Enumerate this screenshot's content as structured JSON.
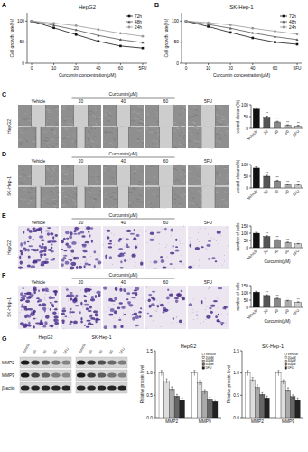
{
  "figure": {
    "panels": [
      "A",
      "B",
      "C",
      "D",
      "E",
      "F",
      "G"
    ],
    "header": "Curcumin(μM)",
    "conditions": [
      "Vehicle",
      "20",
      "40",
      "60",
      "5FU"
    ],
    "cell_lines": [
      "HepG2",
      "SK-Hep-1"
    ],
    "blot_proteins": [
      "MMP2",
      "MMP9",
      "β-actin"
    ]
  },
  "chart_data": [
    {
      "type": "line",
      "title": "HepG2",
      "x_label": "Curcumin concentration(μM)",
      "y_label": "Cell growth rate(%)",
      "categories": [
        "0",
        "10",
        "20",
        "40",
        "60",
        "5FU"
      ],
      "ylim": [
        0,
        120
      ],
      "yticks": [
        0,
        50,
        100
      ],
      "legend": "upper right",
      "series": [
        {
          "name": "72h",
          "color": "#111111",
          "marker": "square",
          "values": [
            100,
            84,
            68,
            52,
            41,
            36
          ]
        },
        {
          "name": "48h",
          "color": "#555555",
          "marker": "triangle",
          "values": [
            100,
            90,
            79,
            66,
            56,
            49
          ]
        },
        {
          "name": "24h",
          "color": "#999999",
          "marker": "circle",
          "values": [
            100,
            95,
            89,
            80,
            71,
            64
          ]
        }
      ]
    },
    {
      "type": "line",
      "title": "SK-Hep-1",
      "x_label": "Curcumin concentration(μM)",
      "y_label": "Cell growth rate(%)",
      "categories": [
        "0",
        "10",
        "20",
        "40",
        "60",
        "5FU"
      ],
      "ylim": [
        0,
        120
      ],
      "yticks": [
        0,
        50,
        100
      ],
      "legend": "upper right",
      "series": [
        {
          "name": "72h",
          "color": "#111111",
          "marker": "square",
          "values": [
            100,
            87,
            73,
            60,
            50,
            45
          ]
        },
        {
          "name": "48h",
          "color": "#555555",
          "marker": "triangle",
          "values": [
            100,
            92,
            83,
            72,
            63,
            56
          ]
        },
        {
          "name": "24h",
          "color": "#999999",
          "marker": "circle",
          "values": [
            100,
            96,
            91,
            83,
            76,
            69
          ]
        }
      ]
    },
    {
      "type": "bar",
      "y_label": "wound closure(%)",
      "categories": [
        "Vehicle",
        "20",
        "40",
        "60",
        "5FU"
      ],
      "values": [
        82,
        48,
        27,
        13,
        11
      ],
      "errors": [
        5,
        4,
        3,
        2,
        2
      ],
      "annotations": [
        null,
        "**",
        "**",
        "**",
        "**"
      ],
      "colors": [
        "#111111",
        "#555555",
        "#888888",
        "#aaaaaa",
        "#cccccc"
      ],
      "ylim": [
        0,
        100
      ],
      "yticks": [
        0,
        50,
        100
      ]
    },
    {
      "type": "bar",
      "y_label": "wound closure(%)",
      "categories": [
        "Vehicle",
        "20",
        "40",
        "60",
        "5FU"
      ],
      "values": [
        85,
        50,
        30,
        14,
        12
      ],
      "errors": [
        5,
        4,
        3,
        2,
        2
      ],
      "annotations": [
        null,
        "**",
        "**",
        "**",
        "**"
      ],
      "colors": [
        "#111111",
        "#555555",
        "#888888",
        "#aaaaaa",
        "#cccccc"
      ],
      "ylim": [
        0,
        100
      ],
      "yticks": [
        0,
        50,
        100
      ]
    },
    {
      "type": "bar",
      "y_label": "number of cells",
      "x_label": "Curcumin(μM)",
      "categories": [
        "Vehicle",
        "20",
        "40",
        "60",
        "5FU"
      ],
      "values": [
        100,
        78,
        52,
        36,
        26
      ],
      "errors": [
        6,
        5,
        4,
        3,
        3
      ],
      "annotations": [
        null,
        "**",
        "**",
        "**",
        "**"
      ],
      "colors": [
        "#111111",
        "#555555",
        "#888888",
        "#aaaaaa",
        "#cccccc"
      ],
      "ylim": [
        0,
        150
      ],
      "yticks": [
        0,
        50,
        100,
        150
      ]
    },
    {
      "type": "bar",
      "y_label": "number of cells",
      "x_label": "Curcumin(μM)",
      "categories": [
        "Vehicle",
        "20",
        "40",
        "60",
        "5FU"
      ],
      "values": [
        105,
        82,
        60,
        45,
        35
      ],
      "errors": [
        6,
        5,
        4,
        4,
        3
      ],
      "annotations": [
        null,
        "**",
        "**",
        "**",
        "**"
      ],
      "colors": [
        "#111111",
        "#555555",
        "#888888",
        "#aaaaaa",
        "#cccccc"
      ],
      "ylim": [
        0,
        150
      ],
      "yticks": [
        0,
        50,
        100,
        150
      ]
    },
    {
      "type": "grouped_bar",
      "title": "HepG2",
      "y_label": "Relative protein level",
      "categories": [
        "MMP2",
        "MMP9"
      ],
      "ylim": [
        0,
        1.5
      ],
      "yticks": [
        {
          "value": 0,
          "label": "0.0"
        },
        0.5,
        {
          "value": 1,
          "label": "1.0"
        },
        1.5
      ],
      "legend": "upper right",
      "series": [
        {
          "name": "Vehicle",
          "color": "#ffffff",
          "values": [
            1.0,
            1.0
          ],
          "errors": [
            0.06,
            0.06
          ]
        },
        {
          "name": "20μM",
          "color": "#dddddd",
          "values": [
            0.82,
            0.78
          ],
          "errors": [
            0.05,
            0.05
          ]
        },
        {
          "name": "40μM",
          "color": "#aaaaaa",
          "values": [
            0.64,
            0.58
          ],
          "errors": [
            0.05,
            0.05
          ]
        },
        {
          "name": "60μM",
          "color": "#666666",
          "values": [
            0.48,
            0.42
          ],
          "errors": [
            0.04,
            0.04
          ]
        },
        {
          "name": "5FU",
          "color": "#222222",
          "values": [
            0.4,
            0.36
          ],
          "errors": [
            0.04,
            0.04
          ]
        }
      ]
    },
    {
      "type": "grouped_bar",
      "title": "SK-Hep-1",
      "y_label": "Relative protein level",
      "categories": [
        "MMP2",
        "MMP9"
      ],
      "ylim": [
        0,
        1.5
      ],
      "yticks": [
        {
          "value": 0,
          "label": "0.0"
        },
        0.5,
        {
          "value": 1,
          "label": "1.0"
        },
        1.5
      ],
      "legend": "upper right",
      "series": [
        {
          "name": "Vehicle",
          "color": "#ffffff",
          "values": [
            1.0,
            1.0
          ],
          "errors": [
            0.06,
            0.06
          ]
        },
        {
          "name": "20μM",
          "color": "#dddddd",
          "values": [
            0.85,
            0.8
          ],
          "errors": [
            0.05,
            0.05
          ]
        },
        {
          "name": "40μM",
          "color": "#aaaaaa",
          "values": [
            0.68,
            0.62
          ],
          "errors": [
            0.05,
            0.05
          ]
        },
        {
          "name": "60μM",
          "color": "#666666",
          "values": [
            0.52,
            0.47
          ],
          "errors": [
            0.04,
            0.04
          ]
        },
        {
          "name": "5FU",
          "color": "#222222",
          "values": [
            0.44,
            0.4
          ],
          "errors": [
            0.04,
            0.04
          ]
        }
      ]
    }
  ]
}
